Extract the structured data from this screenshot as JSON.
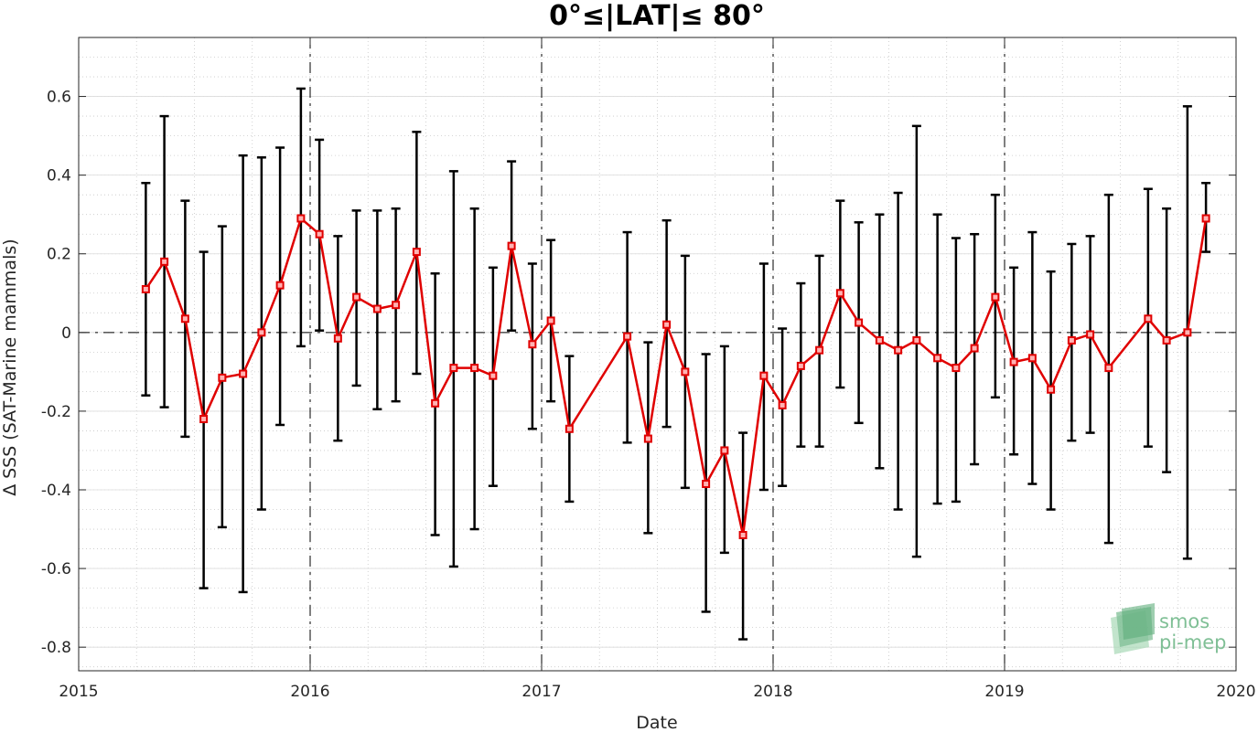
{
  "chart_data": {
    "type": "line",
    "title": "0°≤|LAT|≤ 80°",
    "xlabel": "Date",
    "ylabel": "∆ SSS (SAT-Marine mammals)",
    "xlim": [
      2015,
      2020
    ],
    "ylim": [
      -0.86,
      0.75
    ],
    "x_ticks": [
      "2015",
      "2016",
      "2017",
      "2018",
      "2019",
      "2020"
    ],
    "y_ticks": [
      -0.8,
      -0.6,
      -0.4,
      -0.2,
      0,
      0.2,
      0.4,
      0.6
    ],
    "y_tick_labels": [
      "-0.8",
      "-0.6",
      "-0.4",
      "-0.2",
      "0",
      "0.2",
      "0.4",
      "0.6"
    ],
    "grid": "minor dotted",
    "year_separators": [
      2016,
      2017,
      2018,
      2019
    ],
    "zero_line": true,
    "series": [
      {
        "color": "#e00000",
        "error_bar_color": "#000000",
        "marker": "square",
        "points": [
          {
            "x": 2015.29,
            "y": 0.11,
            "lo": -0.16,
            "hi": 0.38
          },
          {
            "x": 2015.37,
            "y": 0.18,
            "lo": -0.19,
            "hi": 0.55
          },
          {
            "x": 2015.46,
            "y": 0.035,
            "lo": -0.265,
            "hi": 0.335
          },
          {
            "x": 2015.54,
            "y": -0.22,
            "lo": -0.65,
            "hi": 0.205
          },
          {
            "x": 2015.62,
            "y": -0.115,
            "lo": -0.495,
            "hi": 0.27
          },
          {
            "x": 2015.71,
            "y": -0.105,
            "lo": -0.66,
            "hi": 0.45
          },
          {
            "x": 2015.79,
            "y": 0.0,
            "lo": -0.45,
            "hi": 0.445
          },
          {
            "x": 2015.87,
            "y": 0.12,
            "lo": -0.235,
            "hi": 0.47
          },
          {
            "x": 2015.96,
            "y": 0.29,
            "lo": -0.035,
            "hi": 0.62
          },
          {
            "x": 2016.04,
            "y": 0.25,
            "lo": 0.005,
            "hi": 0.49
          },
          {
            "x": 2016.12,
            "y": -0.015,
            "lo": -0.275,
            "hi": 0.245
          },
          {
            "x": 2016.2,
            "y": 0.09,
            "lo": -0.135,
            "hi": 0.31
          },
          {
            "x": 2016.29,
            "y": 0.06,
            "lo": -0.195,
            "hi": 0.31
          },
          {
            "x": 2016.37,
            "y": 0.07,
            "lo": -0.175,
            "hi": 0.315
          },
          {
            "x": 2016.46,
            "y": 0.205,
            "lo": -0.105,
            "hi": 0.51
          },
          {
            "x": 2016.54,
            "y": -0.18,
            "lo": -0.515,
            "hi": 0.15
          },
          {
            "x": 2016.62,
            "y": -0.09,
            "lo": -0.595,
            "hi": 0.41
          },
          {
            "x": 2016.71,
            "y": -0.09,
            "lo": -0.5,
            "hi": 0.315
          },
          {
            "x": 2016.79,
            "y": -0.11,
            "lo": -0.39,
            "hi": 0.165
          },
          {
            "x": 2016.87,
            "y": 0.22,
            "lo": 0.005,
            "hi": 0.435
          },
          {
            "x": 2016.96,
            "y": -0.03,
            "lo": -0.245,
            "hi": 0.175
          },
          {
            "x": 2017.04,
            "y": 0.03,
            "lo": -0.175,
            "hi": 0.235
          },
          {
            "x": 2017.12,
            "y": -0.245,
            "lo": -0.43,
            "hi": -0.06
          },
          {
            "x": 2017.37,
            "y": -0.01,
            "lo": -0.28,
            "hi": 0.255
          },
          {
            "x": 2017.46,
            "y": -0.27,
            "lo": -0.51,
            "hi": -0.025
          },
          {
            "x": 2017.54,
            "y": 0.02,
            "lo": -0.24,
            "hi": 0.285
          },
          {
            "x": 2017.62,
            "y": -0.1,
            "lo": -0.395,
            "hi": 0.195
          },
          {
            "x": 2017.71,
            "y": -0.385,
            "lo": -0.71,
            "hi": -0.055
          },
          {
            "x": 2017.79,
            "y": -0.3,
            "lo": -0.56,
            "hi": -0.035
          },
          {
            "x": 2017.87,
            "y": -0.515,
            "lo": -0.78,
            "hi": -0.255
          },
          {
            "x": 2017.96,
            "y": -0.11,
            "lo": -0.4,
            "hi": 0.175
          },
          {
            "x": 2018.04,
            "y": -0.185,
            "lo": -0.39,
            "hi": 0.01
          },
          {
            "x": 2018.12,
            "y": -0.085,
            "lo": -0.29,
            "hi": 0.125
          },
          {
            "x": 2018.2,
            "y": -0.045,
            "lo": -0.29,
            "hi": 0.195
          },
          {
            "x": 2018.29,
            "y": 0.1,
            "lo": -0.14,
            "hi": 0.335
          },
          {
            "x": 2018.37,
            "y": 0.025,
            "lo": -0.23,
            "hi": 0.28
          },
          {
            "x": 2018.46,
            "y": -0.02,
            "lo": -0.345,
            "hi": 0.3
          },
          {
            "x": 2018.54,
            "y": -0.045,
            "lo": -0.45,
            "hi": 0.355
          },
          {
            "x": 2018.62,
            "y": -0.02,
            "lo": -0.57,
            "hi": 0.525
          },
          {
            "x": 2018.71,
            "y": -0.065,
            "lo": -0.435,
            "hi": 0.3
          },
          {
            "x": 2018.79,
            "y": -0.09,
            "lo": -0.43,
            "hi": 0.24
          },
          {
            "x": 2018.87,
            "y": -0.04,
            "lo": -0.335,
            "hi": 0.25
          },
          {
            "x": 2018.96,
            "y": 0.09,
            "lo": -0.165,
            "hi": 0.35
          },
          {
            "x": 2019.04,
            "y": -0.075,
            "lo": -0.31,
            "hi": 0.165
          },
          {
            "x": 2019.12,
            "y": -0.065,
            "lo": -0.385,
            "hi": 0.255
          },
          {
            "x": 2019.2,
            "y": -0.145,
            "lo": -0.45,
            "hi": 0.155
          },
          {
            "x": 2019.29,
            "y": -0.02,
            "lo": -0.275,
            "hi": 0.225
          },
          {
            "x": 2019.37,
            "y": -0.005,
            "lo": -0.255,
            "hi": 0.245
          },
          {
            "x": 2019.45,
            "y": -0.09,
            "lo": -0.535,
            "hi": 0.35
          },
          {
            "x": 2019.62,
            "y": 0.035,
            "lo": -0.29,
            "hi": 0.365
          },
          {
            "x": 2019.7,
            "y": -0.02,
            "lo": -0.355,
            "hi": 0.315
          },
          {
            "x": 2019.79,
            "y": 0.0,
            "lo": -0.575,
            "hi": 0.575
          },
          {
            "x": 2019.87,
            "y": 0.29,
            "lo": 0.205,
            "hi": 0.38
          }
        ]
      }
    ]
  },
  "logo": {
    "line1": "smos",
    "line2": "pi-mep",
    "color": "#7fbf95"
  }
}
